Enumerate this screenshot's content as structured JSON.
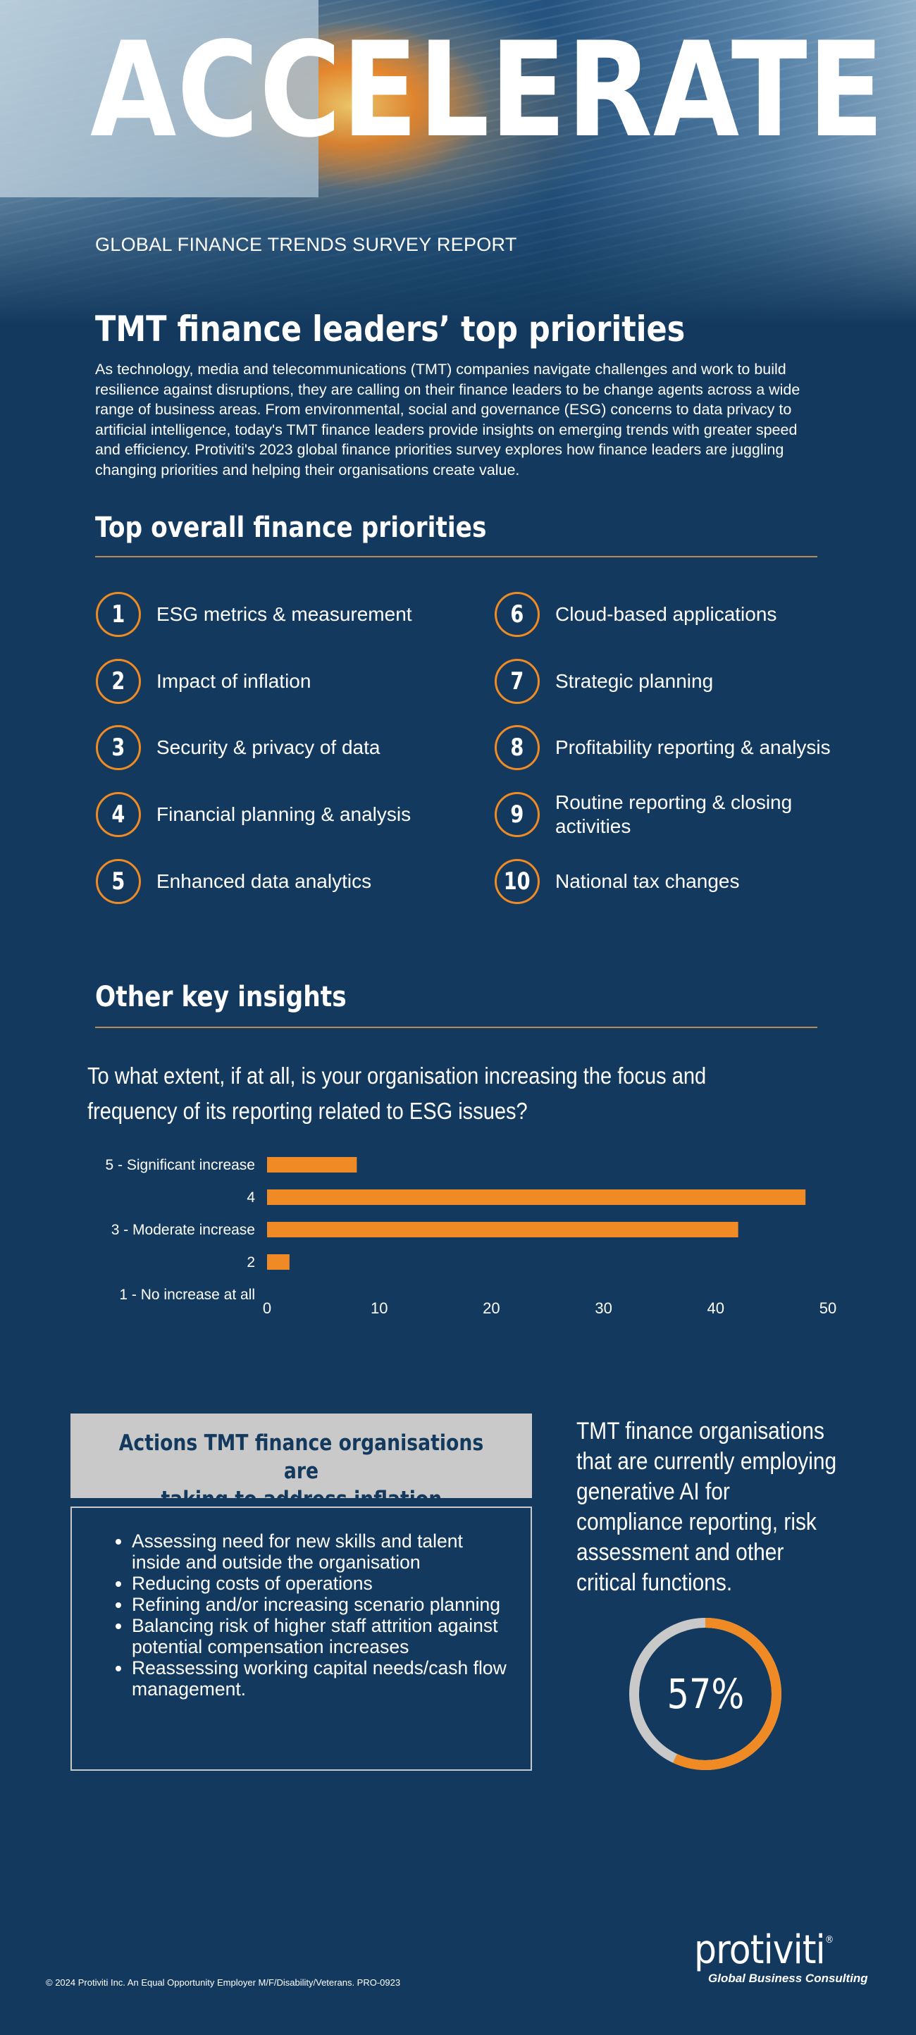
{
  "hero": {
    "title": "ACCELERATE",
    "subtitle": "GLOBAL FINANCE TRENDS SURVEY REPORT"
  },
  "heading": "TMT finance leaders’ top priorities",
  "intro": "As technology, media and telecommunications (TMT) companies navigate challenges and work to build resilience against disruptions, they are calling on their finance leaders to be change agents across a wide range of business areas. From environmental, social and governance (ESG) concerns to data privacy to artificial intelligence, today's TMT finance leaders provide insights on emerging trends with greater speed and efficiency.  Protiviti's 2023 global finance priorities survey explores how finance leaders are juggling changing priorities and helping their organisations create value.",
  "priorities": {
    "title": "Top overall finance priorities",
    "items": [
      {
        "num": "1",
        "label": "ESG metrics & measurement"
      },
      {
        "num": "2",
        "label": "Impact of inflation"
      },
      {
        "num": "3",
        "label": "Security & privacy of data"
      },
      {
        "num": "4",
        "label": "Financial planning & analysis"
      },
      {
        "num": "5",
        "label": "Enhanced data analytics"
      },
      {
        "num": "6",
        "label": "Cloud-based applications"
      },
      {
        "num": "7",
        "label": "Strategic planning"
      },
      {
        "num": "8",
        "label": "Profitability reporting & analysis"
      },
      {
        "num": "9",
        "label": "Routine reporting & closing activities"
      },
      {
        "num": "10",
        "label": "National tax changes"
      }
    ]
  },
  "insights": {
    "title": "Other key insights",
    "question": "To what extent, if at all, is your organisation increasing the focus and frequency of its reporting related to ESG issues?"
  },
  "chart_data": {
    "type": "bar",
    "orientation": "horizontal",
    "categories": [
      "5 - Significant increase",
      "4",
      "3 - Moderate increase",
      "2",
      "1 - No increase at all"
    ],
    "values": [
      8,
      48,
      42,
      2,
      0
    ],
    "xlim": [
      0,
      50
    ],
    "xticks": [
      "0",
      "10",
      "20",
      "30",
      "40",
      "50"
    ],
    "bar_color": "#f08a24",
    "grid": false,
    "title": "",
    "xlabel": "",
    "ylabel": ""
  },
  "inflation": {
    "title_line1": "Actions TMT finance organisations are",
    "title_line2": "taking to address inflation",
    "items": [
      "Assessing need for new skills and talent inside and outside the organisation",
      "Reducing costs of operations",
      "Refining and/or increasing scenario planning",
      "Balancing risk of higher staff attrition against potential compensation increases",
      "Reassessing working capital needs/cash flow management."
    ]
  },
  "gen_ai": {
    "text": "TMT finance organisations that are currently employing generative AI for compliance reporting, risk assessment and other critical functions.",
    "value_label": "57%",
    "fraction": 0.57,
    "ring_color": "#f08a24",
    "track_color": "#c9c9c9"
  },
  "footer": {
    "copyright": "© 2024 Protiviti Inc. An Equal Opportunity Employer M/F/Disability/Veterans. PRO-0923",
    "logo": "protiviti",
    "logo_mark": "®",
    "tagline": "Global Business Consulting"
  },
  "colors": {
    "background": "#133a5e",
    "accent": "#f08a24",
    "rule": "#b78b56",
    "box_gray": "#c9c9c9"
  }
}
